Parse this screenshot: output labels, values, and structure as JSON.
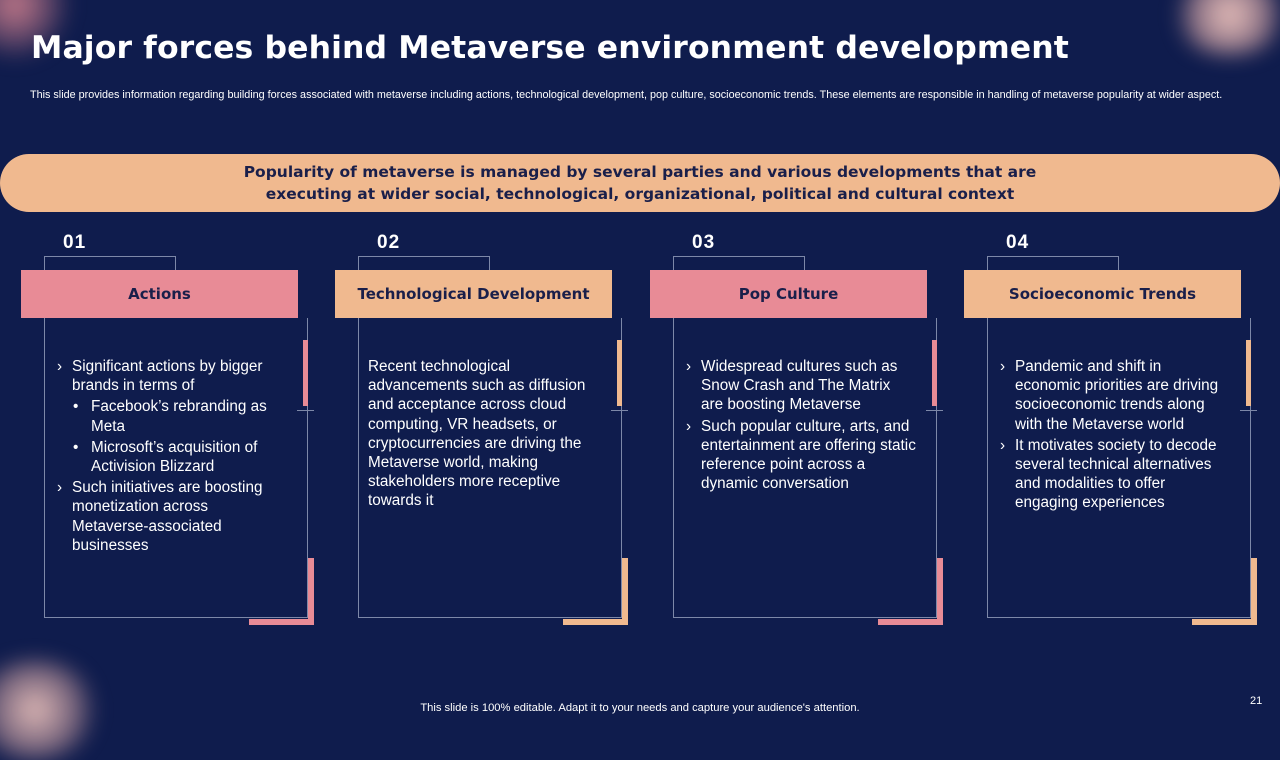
{
  "title": "Major forces behind Metaverse environment development",
  "subtitle": "This slide provides information regarding building forces associated with metaverse including actions, technological development, pop culture, socioeconomic trends. These elements are responsible in handling of metaverse popularity at wider aspect.",
  "banner": "Popularity of metaverse is managed by several parties and various developments that are executing at wider social, technological, organizational, political and cultural context",
  "colors": {
    "background": "#0f1c4d",
    "pink": "#e88b96",
    "peach": "#f0b98f",
    "dark_text": "#1a1f4a"
  },
  "columns": [
    {
      "number": "01",
      "heading": "Actions",
      "points": [
        {
          "text": "Significant actions by bigger brands in terms of",
          "sub": [
            "Facebook’s rebranding as Meta",
            "Microsoft’s acquisition of Activision Blizzard"
          ]
        },
        {
          "text": "Such initiatives are boosting monetization across Metaverse-associated businesses"
        }
      ]
    },
    {
      "number": "02",
      "heading": "Technological Development",
      "paragraph": "Recent technological advancements such as diffusion and acceptance across cloud computing, VR headsets, or cryptocurrencies are driving the Metaverse world, making stakeholders more receptive towards it"
    },
    {
      "number": "03",
      "heading": "Pop Culture",
      "points": [
        {
          "text": "Widespread cultures such as Snow Crash and The Matrix are boosting Metaverse"
        },
        {
          "text": "Such popular culture, arts, and entertainment are offering static reference point across a dynamic conversation"
        }
      ]
    },
    {
      "number": "04",
      "heading": "Socioeconomic Trends",
      "points": [
        {
          "text": "Pandemic and shift in economic priorities are driving socioeconomic trends along with the Metaverse world"
        },
        {
          "text": "It motivates society to decode several technical alternatives and modalities to offer engaging experiences"
        }
      ]
    }
  ],
  "footer": "This slide is 100% editable. Adapt it to your needs and capture your audience's attention.",
  "page_number": "21"
}
